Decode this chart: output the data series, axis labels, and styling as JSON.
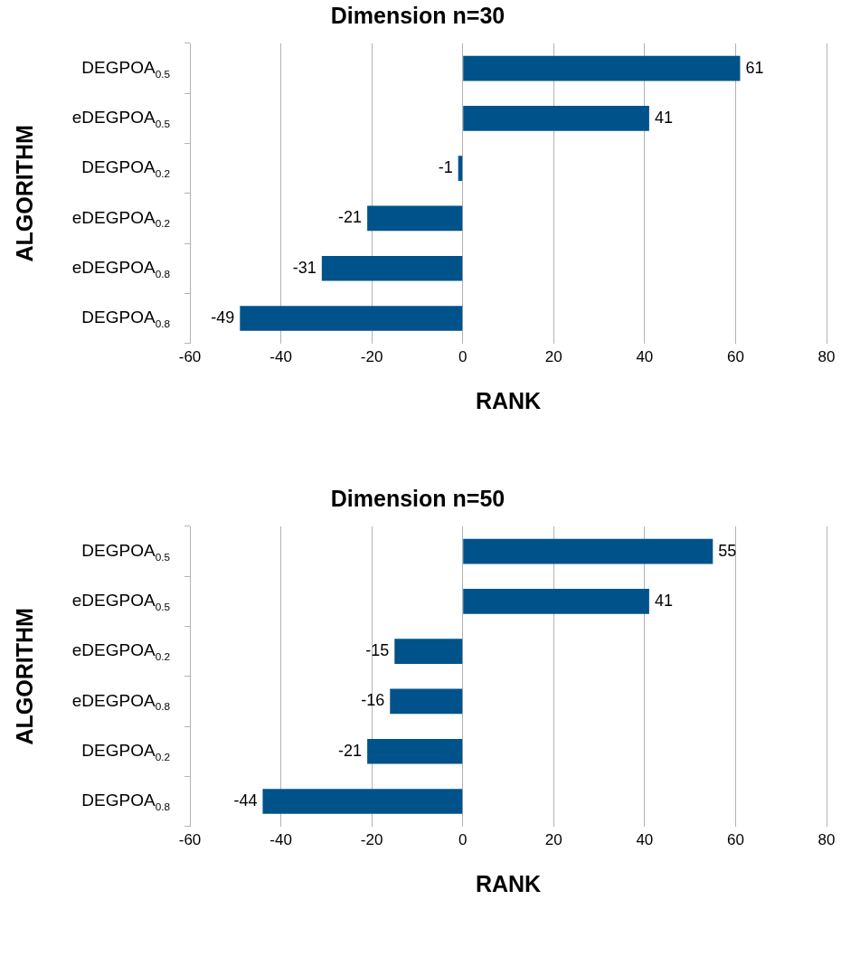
{
  "chart_data": [
    {
      "type": "bar",
      "orientation": "horizontal",
      "title": "Dimension n=30",
      "xlabel": "RANK",
      "ylabel": "ALGORITHM",
      "categories": [
        "DEGPOA$_{0.5}$",
        "eDEGPOA$_{0.5}$",
        "DEGPOA$_{0.2}$",
        "eDEGPOA$_{0.2}$",
        "eDEGPOA$_{0.8}$",
        "DEGPOA$_{0.8}$"
      ],
      "values": [
        61,
        41,
        -1,
        -21,
        -31,
        -49
      ],
      "color": "#00538a",
      "xlim": [
        -60,
        80
      ],
      "xticks": [
        -60,
        -40,
        -20,
        0,
        20,
        40,
        60,
        80
      ],
      "grid": "x",
      "data_labels": true
    },
    {
      "type": "bar",
      "orientation": "horizontal",
      "title": "Dimension n=50",
      "xlabel": "RANK",
      "ylabel": "ALGORITHM",
      "categories": [
        "DEGPOA$_{0.5}$",
        "eDEGPOA$_{0.5}$",
        "eDEGPOA$_{0.2}$",
        "eDEGPOA$_{0.8}$",
        "DEGPOA$_{0.2}$",
        "DEGPOA$_{0.8}$"
      ],
      "values": [
        55,
        41,
        -15,
        -16,
        -21,
        -44
      ],
      "color": "#00538a",
      "xlim": [
        -60,
        80
      ],
      "xticks": [
        -60,
        -40,
        -20,
        0,
        20,
        40,
        60,
        80
      ],
      "grid": "x",
      "data_labels": true
    }
  ]
}
